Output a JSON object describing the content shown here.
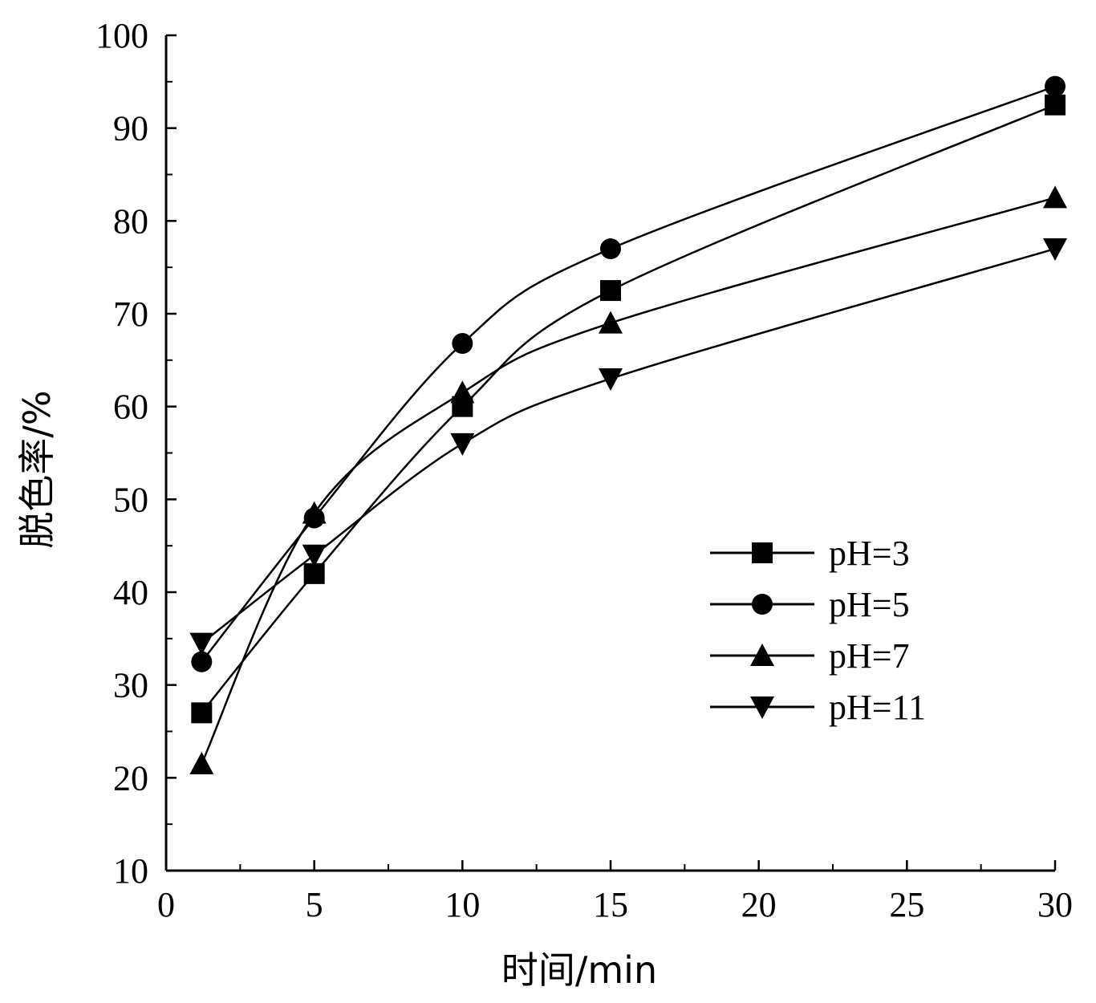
{
  "chart_data": {
    "type": "line",
    "title": "",
    "xlabel": "时间/min",
    "ylabel": "脱色率/%",
    "x": [
      1.2,
      5,
      10,
      15,
      30
    ],
    "xticks": [
      0,
      5,
      10,
      15,
      20,
      25,
      30
    ],
    "xtick_labels": [
      "0",
      "5",
      "10",
      "15",
      "20",
      "25",
      "30"
    ],
    "xtick_pos": [
      0,
      5,
      10,
      15,
      20,
      25,
      30
    ],
    "yticks": [
      10,
      20,
      30,
      40,
      50,
      60,
      70,
      80,
      90,
      100
    ],
    "ylim": [
      10,
      100
    ],
    "grid": false,
    "legend_position": "center-right",
    "series": [
      {
        "name": "pH=3",
        "marker": "square",
        "values": [
          27,
          42,
          60,
          72.5,
          92.5
        ]
      },
      {
        "name": "pH=5",
        "marker": "circle",
        "values": [
          32.5,
          48,
          66.8,
          77,
          94.5
        ]
      },
      {
        "name": "pH=7",
        "marker": "triangle-up",
        "values": [
          21.5,
          48.5,
          61.5,
          69,
          82.5
        ]
      },
      {
        "name": "pH=11",
        "marker": "triangle-down",
        "values": [
          34.5,
          44,
          56,
          63,
          77
        ]
      }
    ]
  }
}
